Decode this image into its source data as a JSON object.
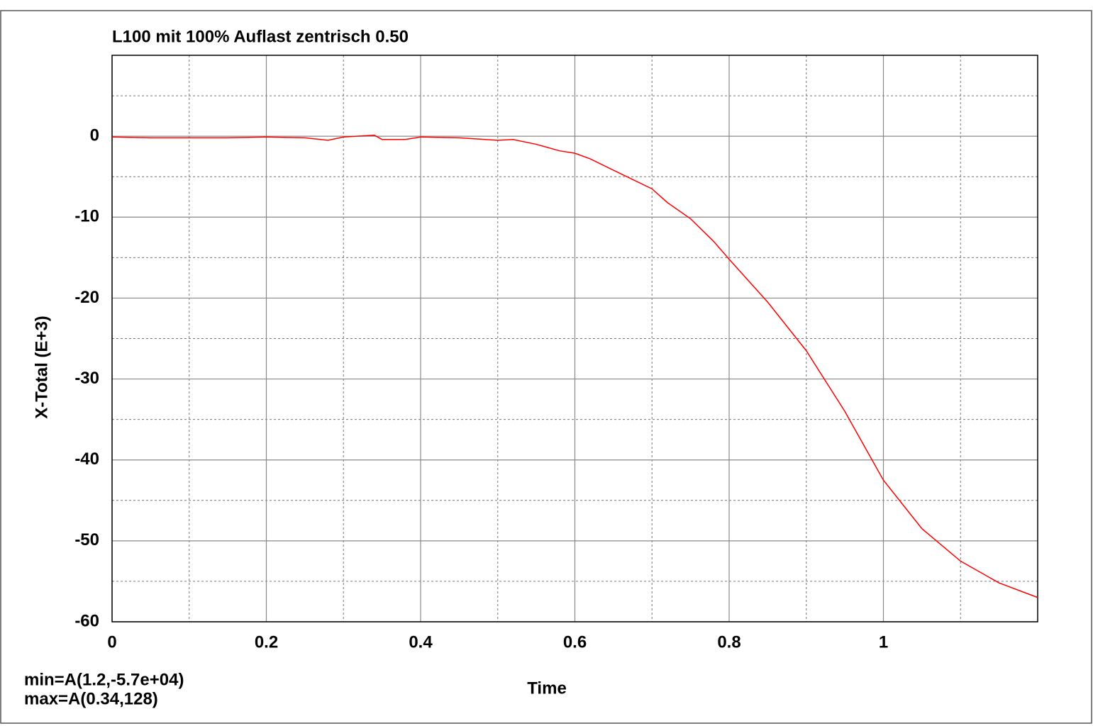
{
  "chart_data": {
    "type": "line",
    "title": "L100 mit 100% Auflast zentrisch 0.50",
    "x_label": "Time",
    "y_label": "X-Total (E+3)",
    "annotations": [
      "min=A(1.2,-5.7e+04)",
      "max=A(0.34,128)"
    ],
    "xlim": [
      0,
      1.2
    ],
    "ylim": [
      -60,
      10
    ],
    "xticks": [
      0,
      0.2,
      0.4,
      0.6,
      0.8,
      1
    ],
    "yticks": [
      -60,
      -50,
      -40,
      -30,
      -20,
      -10,
      0
    ],
    "minor_xticks": [
      0.1,
      0.3,
      0.5,
      0.7,
      0.9,
      1.1
    ],
    "minor_yticks": [
      -55,
      -45,
      -35,
      -25,
      -15,
      -5,
      5
    ],
    "grid": true,
    "series": [
      {
        "color": "#ff0000",
        "x": [
          0,
          0.05,
          0.1,
          0.15,
          0.2,
          0.25,
          0.28,
          0.3,
          0.34,
          0.35,
          0.38,
          0.4,
          0.45,
          0.5,
          0.52,
          0.55,
          0.58,
          0.6,
          0.62,
          0.65,
          0.7,
          0.72,
          0.75,
          0.78,
          0.8,
          0.85,
          0.9,
          0.95,
          1.0,
          1.05,
          1.1,
          1.15,
          1.2
        ],
        "values": [
          -0.1,
          -0.2,
          -0.2,
          -0.2,
          -0.1,
          -0.2,
          -0.5,
          -0.1,
          0.128,
          -0.4,
          -0.4,
          -0.1,
          -0.2,
          -0.5,
          -0.4,
          -1.0,
          -1.8,
          -2.1,
          -2.8,
          -4.2,
          -6.5,
          -8.2,
          -10.2,
          -13,
          -15.2,
          -20.5,
          -26.5,
          -34,
          -42.5,
          -48.5,
          -52.5,
          -55.2,
          -57
        ]
      }
    ]
  }
}
